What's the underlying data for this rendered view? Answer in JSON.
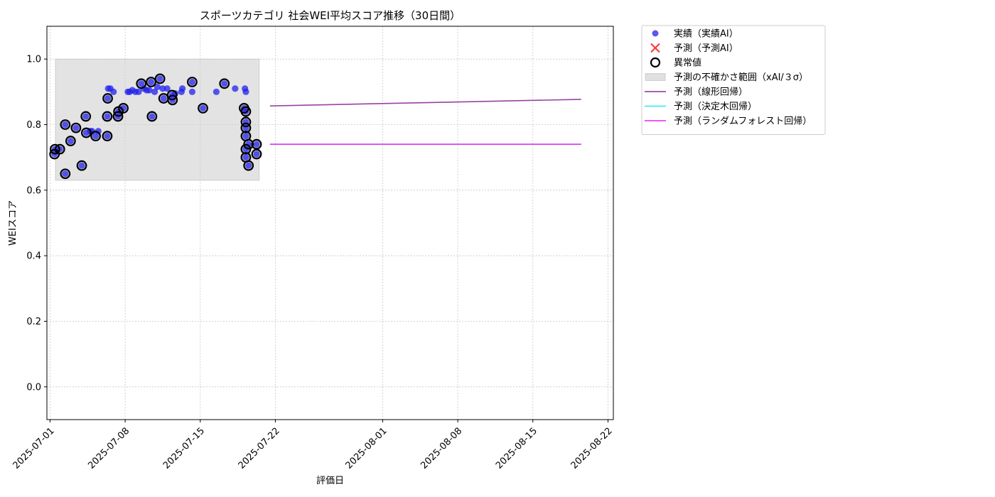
{
  "chart_data": {
    "type": "scatter",
    "title": "スポーツカテゴリ 社会WEI平均スコア推移（30日間）",
    "xlabel": "評価日",
    "ylabel": "WEIスコア",
    "xlim": [
      "2025-06-30T17:00",
      "2025-08-22T12:00"
    ],
    "ylim": [
      -0.1,
      1.1
    ],
    "x_ticks": [
      "2025-07-01",
      "2025-07-08",
      "2025-07-15",
      "2025-07-22",
      "2025-08-01",
      "2025-08-08",
      "2025-08-15",
      "2025-08-22"
    ],
    "y_ticks": [
      0.0,
      0.2,
      0.4,
      0.6,
      0.8,
      1.0
    ],
    "y_tick_labels": [
      "0.0",
      "0.2",
      "0.4",
      "0.6",
      "0.8",
      "1.0"
    ],
    "grid": true,
    "legend_position": "outside-right",
    "colors": {
      "actual": "#2222ee",
      "predicted": "#ff3333",
      "anomaly_edge": "#000000",
      "uncertainty": "#cccccc",
      "linear": "#8b2f97",
      "decision_tree": "#22eeee",
      "random_forest": "#ee22ee"
    },
    "legend": [
      {
        "label": "実績（実績AI）",
        "marker": "dot"
      },
      {
        "label": "予測（予測AI）",
        "marker": "x"
      },
      {
        "label": "異常値",
        "marker": "ring"
      },
      {
        "label": "予測の不確かさ範囲（xAI/３σ）",
        "marker": "patch"
      },
      {
        "label": "予測（線形回帰）",
        "marker": "line"
      },
      {
        "label": "予測（決定木回帰）",
        "marker": "line"
      },
      {
        "label": "予測（ランダムフォレスト回帰）",
        "marker": "line"
      }
    ],
    "uncertainty_band": {
      "x": [
        "2025-07-01T12:00",
        "2025-07-20T12:00"
      ],
      "y": [
        0.63,
        1.0
      ]
    },
    "series": [
      {
        "name": "実績（実績AI）",
        "points": [
          [
            "2025-07-01T10:00",
            0.71
          ],
          [
            "2025-07-01T11:00",
            0.725
          ],
          [
            "2025-07-01T22:00",
            0.725
          ],
          [
            "2025-07-02T10:00",
            0.8
          ],
          [
            "2025-07-02T10:00",
            0.65
          ],
          [
            "2025-07-02T22:00",
            0.75
          ],
          [
            "2025-07-03T10:00",
            0.79
          ],
          [
            "2025-07-03T23:00",
            0.675
          ],
          [
            "2025-07-04T08:00",
            0.825
          ],
          [
            "2025-07-04T09:00",
            0.775
          ],
          [
            "2025-07-04T18:00",
            0.78
          ],
          [
            "2025-07-04T22:00",
            0.78
          ],
          [
            "2025-07-05T06:00",
            0.765
          ],
          [
            "2025-07-05T12:00",
            0.78
          ],
          [
            "2025-07-06T08:00",
            0.825
          ],
          [
            "2025-07-06T08:00",
            0.765
          ],
          [
            "2025-07-06T09:00",
            0.88
          ],
          [
            "2025-07-06T10:00",
            0.91
          ],
          [
            "2025-07-06T15:00",
            0.91
          ],
          [
            "2025-07-06T22:00",
            0.9
          ],
          [
            "2025-07-07T08:00",
            0.825
          ],
          [
            "2025-07-07T09:00",
            0.84
          ],
          [
            "2025-07-07T20:00",
            0.85
          ],
          [
            "2025-07-08T06:00",
            0.9
          ],
          [
            "2025-07-08T10:00",
            0.9
          ],
          [
            "2025-07-08T16:00",
            0.905
          ],
          [
            "2025-07-08T23:00",
            0.9
          ],
          [
            "2025-07-09T06:00",
            0.9
          ],
          [
            "2025-07-09T12:00",
            0.925
          ],
          [
            "2025-07-09T18:00",
            0.91
          ],
          [
            "2025-07-10T00:00",
            0.905
          ],
          [
            "2025-07-10T06:00",
            0.905
          ],
          [
            "2025-07-10T10:00",
            0.93
          ],
          [
            "2025-07-10T12:00",
            0.825
          ],
          [
            "2025-07-10T18:00",
            0.9
          ],
          [
            "2025-07-11T00:00",
            0.915
          ],
          [
            "2025-07-11T06:00",
            0.94
          ],
          [
            "2025-07-11T12:00",
            0.91
          ],
          [
            "2025-07-11T14:00",
            0.88
          ],
          [
            "2025-07-11T22:00",
            0.91
          ],
          [
            "2025-07-12T09:00",
            0.89
          ],
          [
            "2025-07-12T10:00",
            0.875
          ],
          [
            "2025-07-12T16:00",
            0.895
          ],
          [
            "2025-07-13T06:00",
            0.9
          ],
          [
            "2025-07-13T08:00",
            0.91
          ],
          [
            "2025-07-14T06:00",
            0.93
          ],
          [
            "2025-07-14T06:00",
            0.9
          ],
          [
            "2025-07-15T06:00",
            0.85
          ],
          [
            "2025-07-16T12:00",
            0.9
          ],
          [
            "2025-07-17T06:00",
            0.925
          ],
          [
            "2025-07-18T06:00",
            0.91
          ],
          [
            "2025-07-19T02:00",
            0.85
          ],
          [
            "2025-07-19T04:00",
            0.91
          ],
          [
            "2025-07-19T06:00",
            0.9
          ],
          [
            "2025-07-19T06:00",
            0.84
          ],
          [
            "2025-07-19T06:00",
            0.808
          ],
          [
            "2025-07-19T06:00",
            0.79
          ],
          [
            "2025-07-19T06:00",
            0.765
          ],
          [
            "2025-07-19T06:00",
            0.725
          ],
          [
            "2025-07-19T06:00",
            0.7
          ],
          [
            "2025-07-19T12:00",
            0.74
          ],
          [
            "2025-07-19T12:00",
            0.675
          ],
          [
            "2025-07-20T06:00",
            0.74
          ],
          [
            "2025-07-20T06:00",
            0.71
          ]
        ]
      },
      {
        "name": "異常値",
        "points": [
          [
            "2025-07-01T10:00",
            0.71
          ],
          [
            "2025-07-01T11:00",
            0.725
          ],
          [
            "2025-07-01T22:00",
            0.725
          ],
          [
            "2025-07-02T10:00",
            0.8
          ],
          [
            "2025-07-02T10:00",
            0.65
          ],
          [
            "2025-07-02T22:00",
            0.75
          ],
          [
            "2025-07-03T10:00",
            0.79
          ],
          [
            "2025-07-03T23:00",
            0.675
          ],
          [
            "2025-07-04T08:00",
            0.825
          ],
          [
            "2025-07-04T09:00",
            0.775
          ],
          [
            "2025-07-05T06:00",
            0.765
          ],
          [
            "2025-07-06T08:00",
            0.825
          ],
          [
            "2025-07-06T08:00",
            0.765
          ],
          [
            "2025-07-06T09:00",
            0.88
          ],
          [
            "2025-07-07T08:00",
            0.825
          ],
          [
            "2025-07-07T09:00",
            0.84
          ],
          [
            "2025-07-07T20:00",
            0.85
          ],
          [
            "2025-07-09T12:00",
            0.925
          ],
          [
            "2025-07-10T10:00",
            0.93
          ],
          [
            "2025-07-10T12:00",
            0.825
          ],
          [
            "2025-07-11T06:00",
            0.94
          ],
          [
            "2025-07-11T14:00",
            0.88
          ],
          [
            "2025-07-12T09:00",
            0.89
          ],
          [
            "2025-07-12T10:00",
            0.875
          ],
          [
            "2025-07-14T06:00",
            0.93
          ],
          [
            "2025-07-15T06:00",
            0.85
          ],
          [
            "2025-07-17T06:00",
            0.925
          ],
          [
            "2025-07-19T02:00",
            0.85
          ],
          [
            "2025-07-19T06:00",
            0.84
          ],
          [
            "2025-07-19T06:00",
            0.808
          ],
          [
            "2025-07-19T06:00",
            0.79
          ],
          [
            "2025-07-19T06:00",
            0.765
          ],
          [
            "2025-07-19T06:00",
            0.725
          ],
          [
            "2025-07-19T06:00",
            0.7
          ],
          [
            "2025-07-19T12:00",
            0.74
          ],
          [
            "2025-07-19T12:00",
            0.675
          ],
          [
            "2025-07-20T06:00",
            0.74
          ],
          [
            "2025-07-20T06:00",
            0.71
          ]
        ]
      },
      {
        "name": "予測（線形回帰）",
        "line": [
          [
            "2025-07-21T12:00",
            0.857
          ],
          [
            "2025-08-19T12:00",
            0.877
          ]
        ]
      },
      {
        "name": "予測（決定木回帰）",
        "line": [
          [
            "2025-07-21T12:00",
            0.74
          ],
          [
            "2025-08-19T12:00",
            0.74
          ]
        ]
      },
      {
        "name": "予測（ランダムフォレスト回帰）",
        "line": [
          [
            "2025-07-21T12:00",
            0.74
          ],
          [
            "2025-08-19T12:00",
            0.74
          ]
        ]
      }
    ]
  }
}
